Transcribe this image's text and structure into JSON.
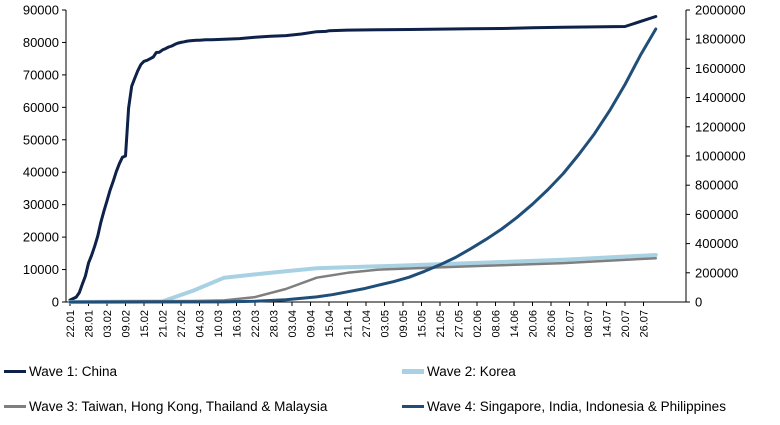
{
  "chart_data": {
    "type": "line",
    "title": "",
    "xlabel": "",
    "ylabel_left": "",
    "ylabel_right": "",
    "left_axis": {
      "ylim": [
        0,
        90000
      ],
      "ticks": [
        "0",
        "10000",
        "20000",
        "30000",
        "40000",
        "50000",
        "60000",
        "70000",
        "80000",
        "90000"
      ]
    },
    "right_axis": {
      "ylim": [
        0,
        2000000
      ],
      "ticks": [
        "0",
        "200000",
        "400000",
        "600000",
        "800000",
        "1000000",
        "1200000",
        "1400000",
        "1600000",
        "1800000",
        "2000000"
      ]
    },
    "categories": [
      "22.01",
      "28.01",
      "03.02",
      "09.02",
      "15.02",
      "21.02",
      "27.02",
      "04.03",
      "10.03",
      "16.03",
      "22.03",
      "28.03",
      "03.04",
      "09.04",
      "15.04",
      "21.04",
      "27.04",
      "03.05",
      "09.05",
      "15.05",
      "21.05",
      "27.05",
      "02.06",
      "08.06",
      "14.06",
      "20.06",
      "26.06",
      "02.07",
      "08.07",
      "14.07",
      "20.07",
      "26.07"
    ],
    "grid": false,
    "legend_position": "bottom",
    "series": [
      {
        "name": "Wave 1: China",
        "axis": "left",
        "color": "#0d2149",
        "x": [
          0,
          2,
          3,
          4,
          5,
          6,
          7,
          8,
          9,
          10,
          11,
          12,
          13,
          14,
          15,
          16,
          17,
          18,
          19,
          20,
          21,
          22,
          23,
          24,
          25,
          26,
          27,
          28,
          29,
          30,
          31,
          32,
          33,
          34,
          35,
          36,
          37,
          38,
          39,
          40,
          41,
          42,
          44,
          46,
          48,
          50,
          55,
          60,
          65,
          70,
          75,
          80,
          83,
          84,
          90,
          100,
          110,
          120,
          130,
          140,
          150,
          160,
          170,
          180,
          190
        ],
        "values": [
          580,
          1500,
          2900,
          5500,
          8000,
          12000,
          14400,
          17200,
          20400,
          24500,
          28000,
          31200,
          34500,
          37200,
          40200,
          42600,
          44600,
          45000,
          59800,
          66500,
          69000,
          71300,
          73200,
          74200,
          74500,
          75000,
          75500,
          76900,
          77000,
          77700,
          78100,
          78600,
          78900,
          79400,
          79800,
          80000,
          80200,
          80400,
          80500,
          80600,
          80700,
          80700,
          80800,
          80800,
          80900,
          81000,
          81200,
          81600,
          81900,
          82100,
          82600,
          83300,
          83400,
          83600,
          83800,
          83900,
          84000,
          84100,
          84200,
          84300,
          84500,
          84700,
          84800,
          84900,
          88000
        ]
      },
      {
        "name": "Wave 2: Korea",
        "axis": "left",
        "color": "#a9d1e4",
        "x": [
          0,
          30,
          40,
          50,
          60,
          70,
          80,
          100,
          130,
          160,
          190
        ],
        "values": [
          1,
          200,
          3500,
          7500,
          8500,
          9500,
          10400,
          11000,
          12000,
          13000,
          14500
        ]
      },
      {
        "name": "Wave 3: Taiwan, Hong Kong, Thailand & Malaysia",
        "axis": "left",
        "color": "#7f7f7f",
        "x": [
          0,
          40,
          50,
          60,
          70,
          80,
          90,
          100,
          130,
          160,
          190
        ],
        "values": [
          50,
          300,
          500,
          1500,
          4000,
          7500,
          9000,
          10000,
          11000,
          12000,
          13500
        ]
      },
      {
        "name": "Wave 4: Singapore, India, Indonesia & Philippines",
        "axis": "right",
        "color": "#1f4e79",
        "x": [
          0,
          50,
          60,
          70,
          80,
          85,
          90,
          95,
          100,
          105,
          110,
          115,
          120,
          125,
          130,
          135,
          140,
          145,
          150,
          155,
          160,
          165,
          170,
          175,
          180,
          185,
          190
        ],
        "values": [
          0,
          1000,
          5000,
          15000,
          35000,
          50000,
          70000,
          90000,
          115000,
          140000,
          170000,
          210000,
          255000,
          305000,
          365000,
          430000,
          500000,
          580000,
          670000,
          770000,
          880000,
          1010000,
          1150000,
          1310000,
          1490000,
          1690000,
          1870000
        ]
      }
    ]
  }
}
